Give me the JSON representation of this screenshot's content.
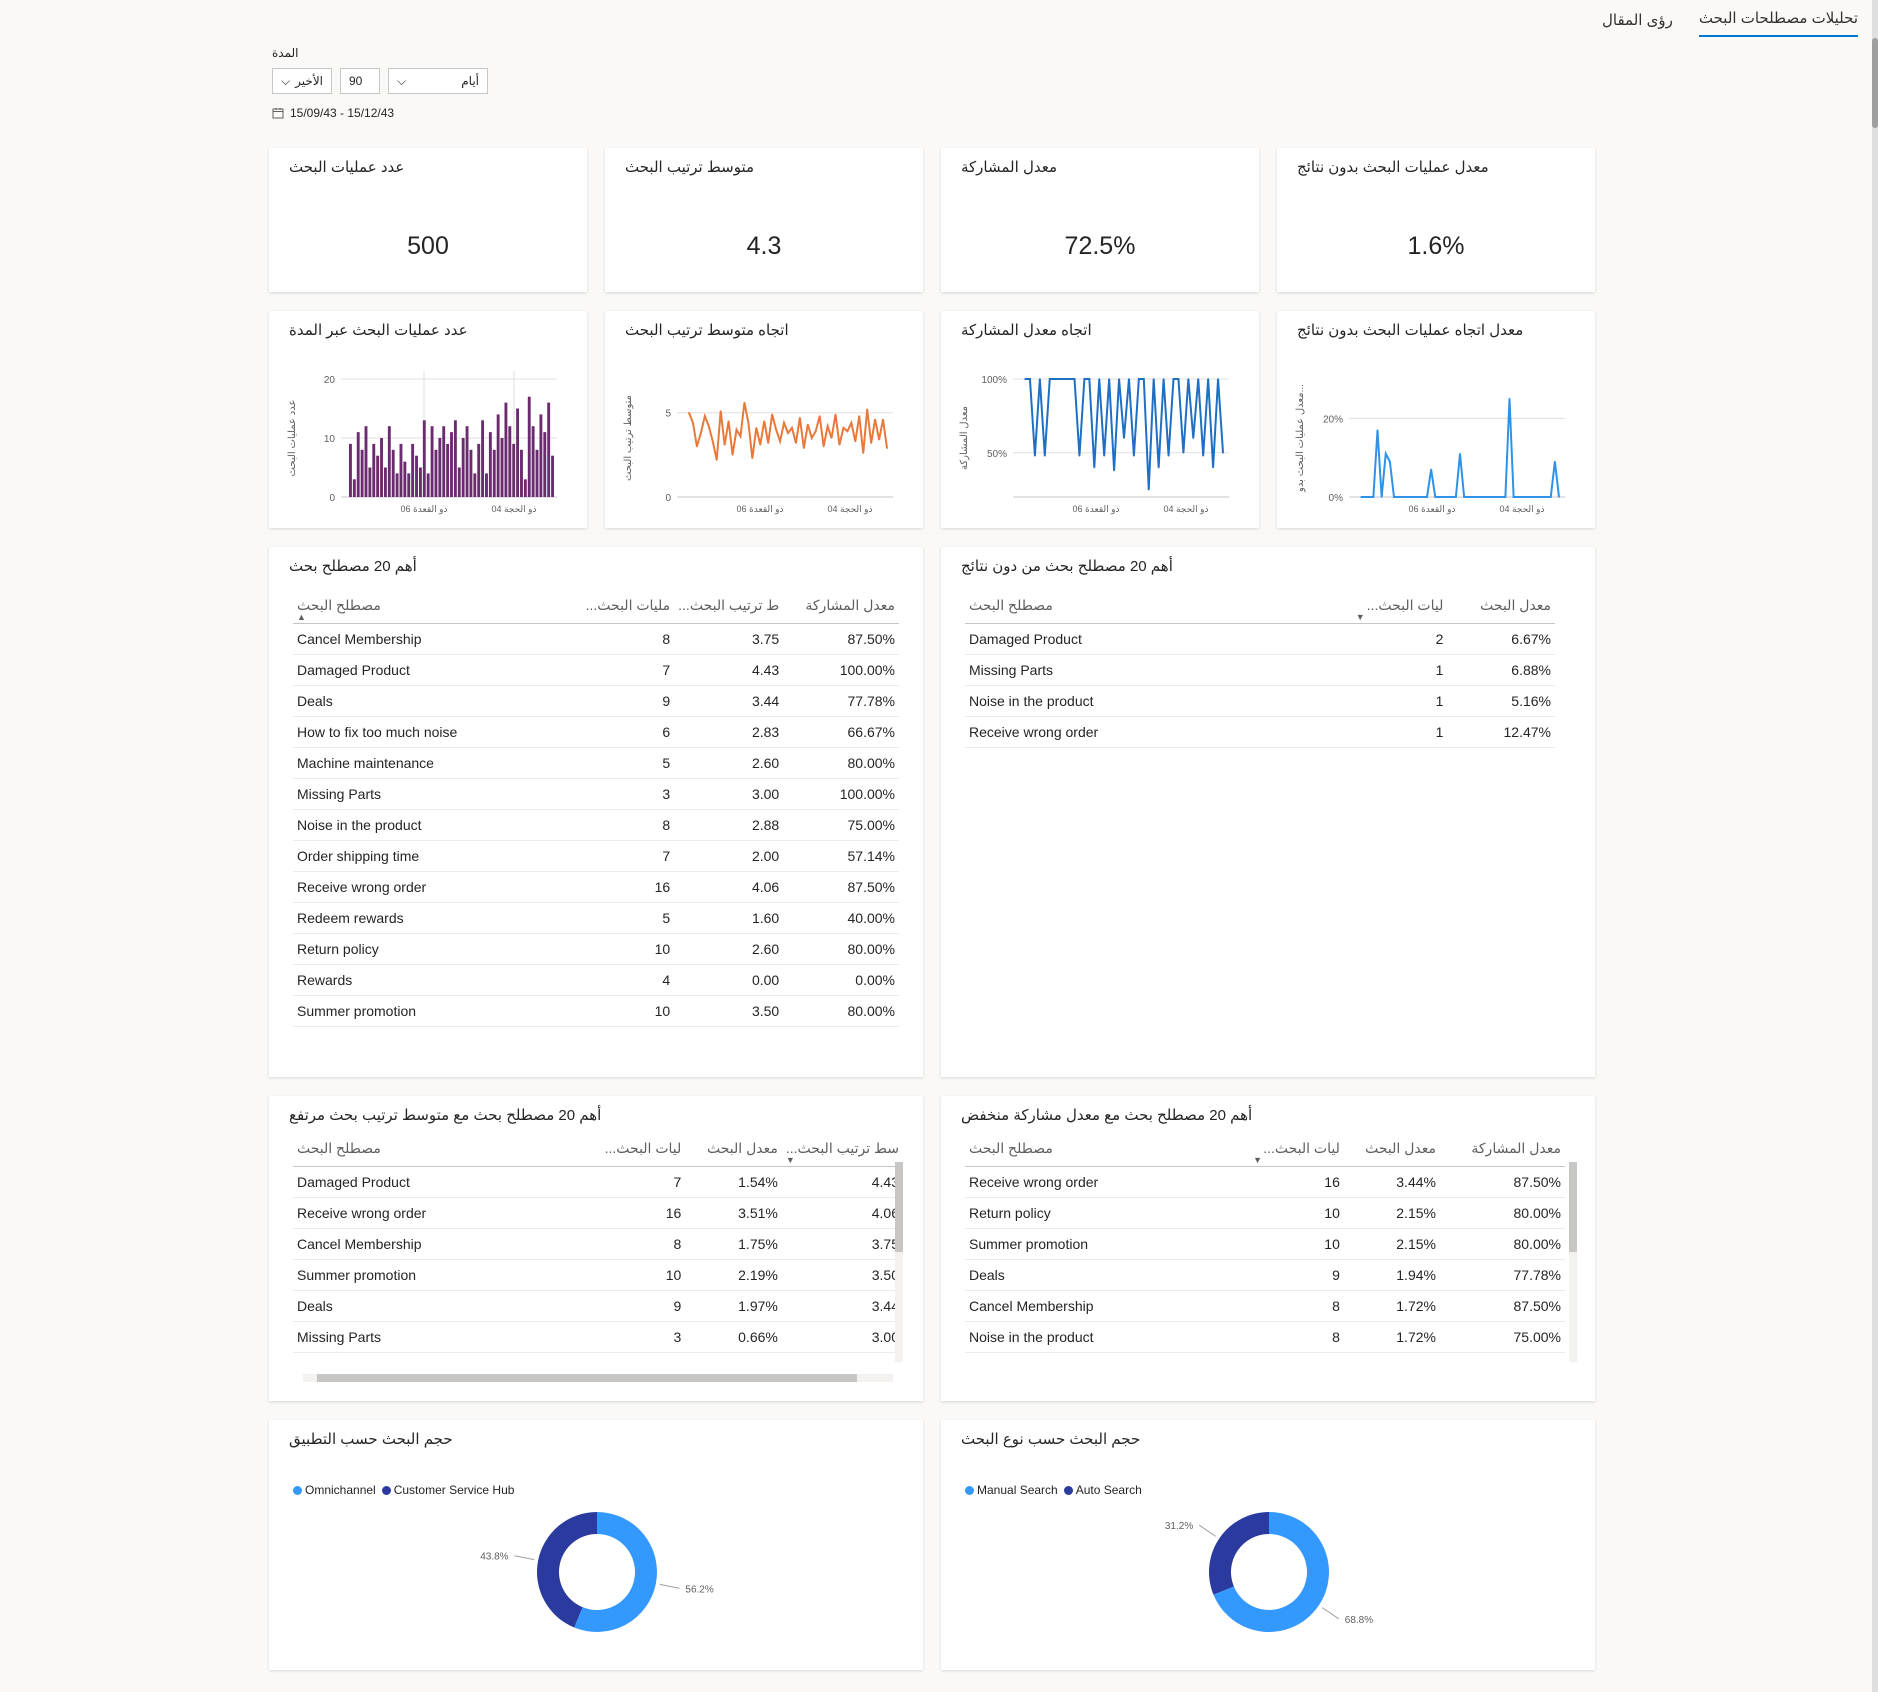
{
  "tabs": [
    {
      "label": "تحليلات مصطلحات البحث",
      "active": true
    },
    {
      "label": "رؤى المقال",
      "active": false
    }
  ],
  "filter": {
    "label": "المدة",
    "relative": "الأخير",
    "number": "90",
    "unit": "أيام",
    "date_range": "15/09/43 - 15/12/43"
  },
  "kpis": [
    {
      "title": "عدد عمليات البحث",
      "value": "500"
    },
    {
      "title": "متوسط ترتيب البحث",
      "value": "4.3"
    },
    {
      "title": "معدل المشاركة",
      "value": "72.5%"
    },
    {
      "title": "معدل عمليات البحث بدون نتائج",
      "value": "1.6%"
    }
  ],
  "colors": {
    "accent": "#0078d4",
    "purple": "#6b2c6f",
    "orange": "#e8793a",
    "blue": "#1f6fc5",
    "light_blue": "#2e93e8",
    "pie_light": "#3399ff",
    "pie_dark": "#2a3a9e"
  },
  "chart_data": [
    {
      "type": "bar",
      "title": "عدد عمليات البحث عبر المدة",
      "ylabel": "عدد عمليات البحث",
      "ylim": [
        0,
        20
      ],
      "yticks": [
        "20",
        "10",
        "0"
      ],
      "xticks": [
        "06 ذو القعدة",
        "04 ذو الحجة"
      ],
      "values": [
        9,
        3,
        11,
        8,
        12,
        5,
        9,
        7,
        10,
        5,
        12,
        8,
        4,
        9,
        6,
        4,
        9,
        7,
        5,
        13,
        4,
        12,
        8,
        10,
        12,
        9,
        11,
        13,
        5,
        10,
        12,
        8,
        4,
        9,
        13,
        4,
        11,
        8,
        14,
        10,
        16,
        12,
        9,
        15,
        8,
        3,
        17,
        12,
        8,
        14,
        11,
        16,
        7
      ]
    },
    {
      "type": "line",
      "title": "اتجاه متوسط ترتيب البحث",
      "ylabel": "متوسط ترتيب البحث",
      "ylim": [
        0,
        7
      ],
      "yticks": [
        "5",
        "0"
      ],
      "xticks": [
        "06 ذو القعدة",
        "04 ذو الحجة"
      ],
      "values": [
        5,
        4.4,
        3,
        3.8,
        4.8,
        4.2,
        3.3,
        2.2,
        5.1,
        3.1,
        4.5,
        2.5,
        4,
        3.6,
        5.6,
        4.4,
        2.3,
        4.1,
        3.1,
        4.5,
        3.2,
        4.9,
        4,
        3.3,
        4.4,
        3.8,
        4.1,
        3.2,
        4.7,
        2.9,
        4.3,
        3.5,
        3.9,
        4.8,
        3,
        4.2,
        3.5,
        4.9,
        3.1,
        4.1,
        3.9,
        4.4,
        3.3,
        4.8,
        2.6,
        5.2,
        3.2,
        4.6,
        3.4,
        4.6,
        2.9
      ]
    },
    {
      "type": "line",
      "title": "اتجاه معدل المشاركة",
      "ylabel": "معدل المشاركة",
      "ylim": [
        20,
        100
      ],
      "yticks": [
        "100%",
        "50%"
      ],
      "xticks": [
        "06 ذو القعدة",
        "04 ذو الحجة"
      ],
      "values": [
        100,
        100,
        48,
        100,
        48,
        100,
        100,
        100,
        100,
        100,
        100,
        48,
        100,
        100,
        40,
        100,
        48,
        100,
        38,
        100,
        60,
        100,
        48,
        100,
        100,
        25,
        100,
        40,
        100,
        48,
        100,
        100,
        50,
        100,
        60,
        100,
        48,
        100,
        40,
        100,
        50
      ]
    },
    {
      "type": "line",
      "title": "معدل اتجاه عمليات البحث بدون نتائج",
      "ylabel": "معدل عمليات البحث بدو...",
      "ylim": [
        0,
        30
      ],
      "yticks": [
        "20%",
        "0%"
      ],
      "xticks": [
        "06 ذو القعدة",
        "04 ذو الحجة"
      ],
      "values": [
        0,
        0,
        0,
        0,
        17,
        0,
        11,
        9,
        0,
        0,
        0,
        0,
        0,
        0,
        0,
        0,
        0,
        7,
        0,
        0,
        0,
        0,
        0,
        0,
        11,
        0,
        0,
        0,
        0,
        0,
        0,
        0,
        0,
        0,
        0,
        0,
        25,
        0,
        0,
        0,
        0,
        0,
        0,
        0,
        0,
        0,
        0,
        9,
        0
      ]
    },
    {
      "type": "pie",
      "title": "حجم البحث حسب التطبيق",
      "labels": [
        "Omnichannel",
        "Customer Service Hub"
      ],
      "values": [
        56.2,
        43.8
      ],
      "value_labels": [
        "56.2%",
        "43.8%"
      ]
    },
    {
      "type": "pie",
      "title": "حجم البحث حسب نوع البحث",
      "labels": [
        "Manual Search",
        "Auto Search"
      ],
      "values": [
        68.8,
        31.2
      ],
      "value_labels": [
        "68.8%",
        "31.2%"
      ]
    }
  ],
  "top20": {
    "title": "أهم 20 مصطلح بحث",
    "headers": [
      "مصطلح البحث",
      "...مليات البحث",
      "...ط ترتيب البحث",
      "معدل المشاركة"
    ],
    "rows": [
      [
        "Cancel Membership",
        "8",
        "3.75",
        "87.50%"
      ],
      [
        "Damaged Product",
        "7",
        "4.43",
        "100.00%"
      ],
      [
        "Deals",
        "9",
        "3.44",
        "77.78%"
      ],
      [
        "How to fix too much noise",
        "6",
        "2.83",
        "66.67%"
      ],
      [
        "Machine maintenance",
        "5",
        "2.60",
        "80.00%"
      ],
      [
        "Missing Parts",
        "3",
        "3.00",
        "100.00%"
      ],
      [
        "Noise in the product",
        "8",
        "2.88",
        "75.00%"
      ],
      [
        "Order shipping time",
        "7",
        "2.00",
        "57.14%"
      ],
      [
        "Receive wrong order",
        "16",
        "4.06",
        "87.50%"
      ],
      [
        "Redeem rewards",
        "5",
        "1.60",
        "40.00%"
      ],
      [
        "Return policy",
        "10",
        "2.60",
        "80.00%"
      ],
      [
        "Rewards",
        "4",
        "0.00",
        "0.00%"
      ],
      [
        "Summer promotion",
        "10",
        "3.50",
        "80.00%"
      ]
    ]
  },
  "noresults": {
    "title": "أهم 20 مصطلح بحث من دون نتائج",
    "headers": [
      "مصطلح البحث",
      "...ليات البحث",
      "معدل البحث"
    ],
    "rows": [
      [
        "Damaged Product",
        "2",
        "6.67%"
      ],
      [
        "Missing Parts",
        "1",
        "6.88%"
      ],
      [
        "Noise in the product",
        "1",
        "5.16%"
      ],
      [
        "Receive wrong order",
        "1",
        "12.47%"
      ]
    ]
  },
  "highrank": {
    "title": "أهم 20 مصطلح بحث مع متوسط ترتيب بحث مرتفع",
    "headers": [
      "مصطلح البحث",
      "...ليات البحث",
      "معدل البحث",
      "...سط ترتيب البحث"
    ],
    "rows": [
      [
        "Damaged Product",
        "7",
        "1.54%",
        "4.43"
      ],
      [
        "Receive wrong order",
        "16",
        "3.51%",
        "4.06"
      ],
      [
        "Cancel Membership",
        "8",
        "1.75%",
        "3.75"
      ],
      [
        "Summer promotion",
        "10",
        "2.19%",
        "3.50"
      ],
      [
        "Deals",
        "9",
        "1.97%",
        "3.44"
      ],
      [
        "Missing Parts",
        "3",
        "0.66%",
        "3.00"
      ]
    ]
  },
  "lowengage": {
    "title": "أهم 20 مصطلح بحث مع معدل مشاركة منخفض",
    "headers": [
      "مصطلح البحث",
      "...ليات البحث",
      "معدل البحث",
      "معدل المشاركة"
    ],
    "rows": [
      [
        "Receive wrong order",
        "16",
        "3.44%",
        "87.50%"
      ],
      [
        "Return policy",
        "10",
        "2.15%",
        "80.00%"
      ],
      [
        "Summer promotion",
        "10",
        "2.15%",
        "80.00%"
      ],
      [
        "Deals",
        "9",
        "1.94%",
        "77.78%"
      ],
      [
        "Cancel Membership",
        "8",
        "1.72%",
        "87.50%"
      ],
      [
        "Noise in the product",
        "8",
        "1.72%",
        "75.00%"
      ]
    ]
  }
}
